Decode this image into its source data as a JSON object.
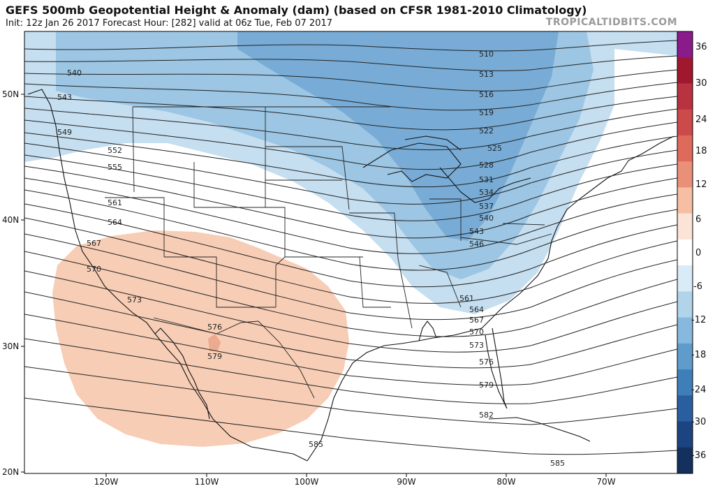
{
  "header": {
    "title": "GEFS 500mb Geopotential Height & Anomaly (dam) (based on CFSR 1981-2010 Climatology)",
    "subtitle": "Init: 12z Jan 26 2017   Forecast Hour: [282]   valid at 06z Tue, Feb 07 2017",
    "credit": "TROPICALTIDBITS.COM"
  },
  "axes": {
    "lat_labels": [
      "50N",
      "40N",
      "30N",
      "20N"
    ],
    "lon_labels": [
      "120W",
      "110W",
      "100W",
      "90W",
      "80W",
      "70W"
    ]
  },
  "contours": {
    "labels": [
      "510",
      "513",
      "516",
      "519",
      "522",
      "525",
      "528",
      "531",
      "534",
      "537",
      "540",
      "543",
      "546",
      "540",
      "543",
      "549",
      "552",
      "555",
      "561",
      "564",
      "567",
      "570",
      "573",
      "576",
      "579",
      "561",
      "564",
      "567",
      "570",
      "573",
      "576",
      "579",
      "582",
      "585",
      "585"
    ]
  },
  "colorbar": {
    "ticks": [
      "36",
      "30",
      "24",
      "18",
      "12",
      "6",
      "0",
      "-6",
      "-12",
      "-18",
      "-24",
      "-30",
      "-36"
    ],
    "colors": [
      "#8b1a8b",
      "#a0182e",
      "#b83240",
      "#cc4a4a",
      "#dd6a5a",
      "#eb9078",
      "#f6bfa4",
      "#fbe3d6",
      "#ffffff",
      "#d9ebf6",
      "#b2d4ea",
      "#86b9dd",
      "#5f9ccb",
      "#3f7fb9",
      "#2a5f9f",
      "#1c4480",
      "#13305f"
    ]
  },
  "anomaly_colors": {
    "negative_light": "#c5def0",
    "negative_mid": "#9cc6e3",
    "negative_dark": "#78acd6",
    "positive": "#f7cdb5",
    "positive_core": "#ecaa8e"
  }
}
